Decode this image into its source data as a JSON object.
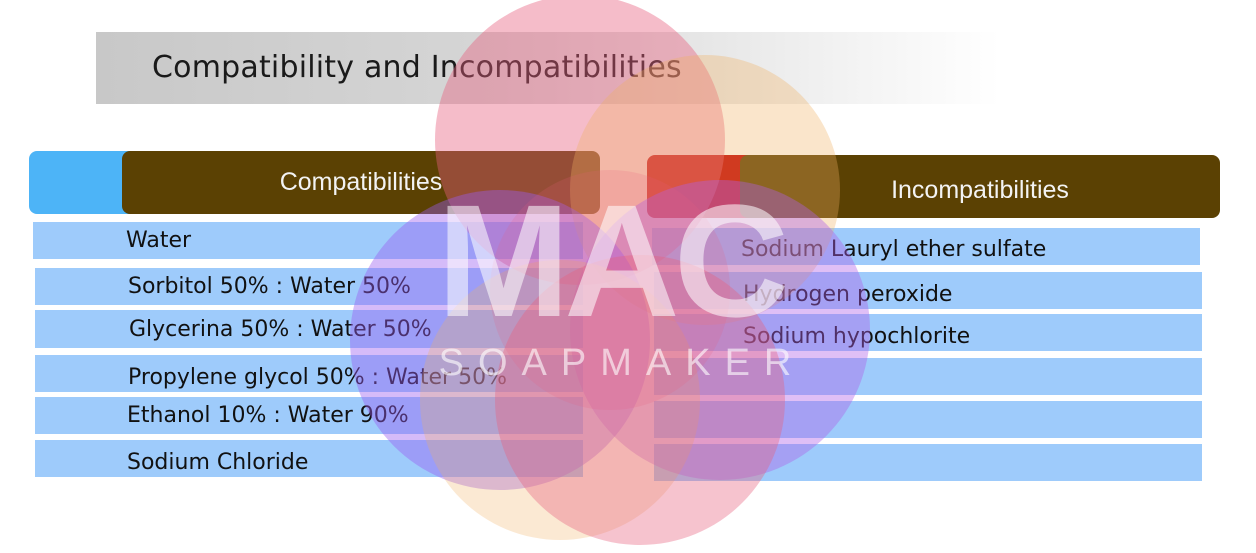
{
  "title": "Compatibility and Incompatibilities",
  "compatibilities": {
    "header": "Compatibilities",
    "items": [
      "Water",
      "Sorbitol 50% : Water 50%",
      "Glycerina 50% : Water 50%",
      "Propylene glycol 50% : Water 50%",
      "Ethanol 10% : Water 90%",
      "Sodium Chloride"
    ]
  },
  "incompatibilities": {
    "header": "Incompatibilities",
    "items": [
      "Sodium Lauryl ether sulfate",
      "Hydrogen peroxide",
      "Sodium hypochlorite",
      "",
      "",
      ""
    ]
  },
  "watermark": {
    "logo_text": "MAC",
    "brand_text": "SOAPMAKER"
  },
  "colors": {
    "row_fill": "#9ecbfb",
    "compat_header": "#5b4103",
    "compat_accent": "#4db4f7",
    "incompat_header": "#5b4103",
    "incompat_accent": "#c00000"
  }
}
